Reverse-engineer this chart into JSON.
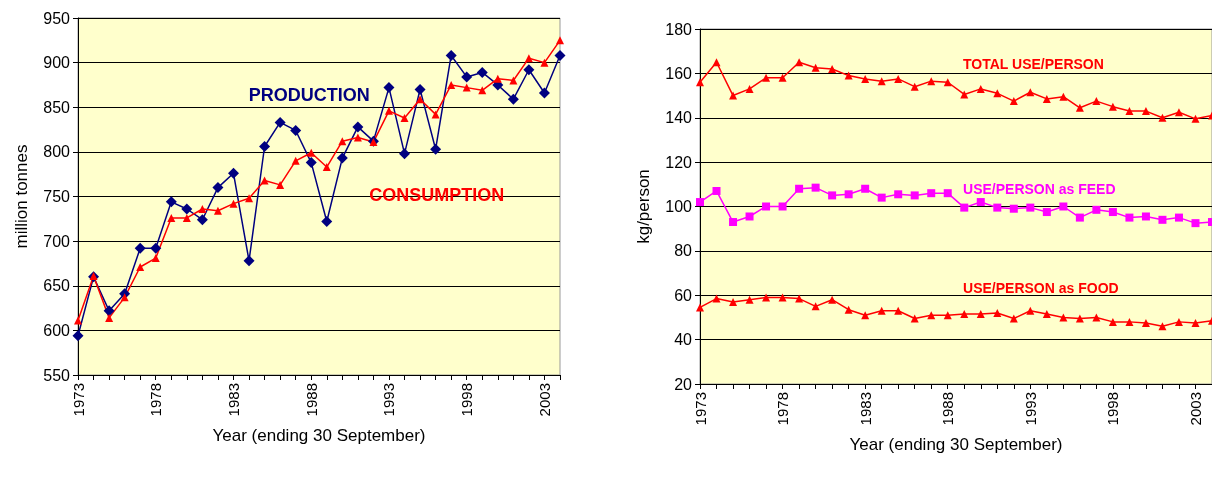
{
  "chart_data": [
    {
      "type": "line",
      "xlabel": "Year (ending 30 September)",
      "ylabel": "million tonnes",
      "categories": [
        "1973",
        null,
        null,
        null,
        null,
        "1978",
        null,
        null,
        null,
        null,
        "1983",
        null,
        null,
        null,
        null,
        "1988",
        null,
        null,
        null,
        null,
        "1993",
        null,
        null,
        null,
        null,
        "1998",
        null,
        null,
        null,
        null,
        "2003",
        null
      ],
      "ylim": [
        550,
        950
      ],
      "yticks": [
        550,
        600,
        650,
        700,
        750,
        800,
        850,
        900,
        950
      ],
      "grid": "y",
      "series": [
        {
          "name": "PRODUCTION",
          "color": "#000080",
          "marker": "diamond",
          "values": [
            594,
            660,
            622,
            641,
            692,
            692,
            744,
            736,
            724,
            760,
            776,
            678,
            806,
            833,
            824,
            788,
            722,
            793,
            828,
            812,
            872,
            798,
            870,
            803,
            908,
            884,
            889,
            875,
            859,
            892,
            866,
            908
          ]
        },
        {
          "name": "CONSUMPTION",
          "color": "#ff0000",
          "marker": "triangle",
          "values": [
            611,
            661,
            614,
            637,
            671,
            681,
            726,
            726,
            736,
            734,
            742,
            748,
            768,
            763,
            790,
            799,
            783,
            812,
            816,
            811,
            846,
            838,
            859,
            842,
            875,
            872,
            869,
            882,
            880,
            905,
            900,
            925
          ]
        }
      ]
    },
    {
      "type": "line",
      "xlabel": "Year (ending 30 September)",
      "ylabel": "kg/person",
      "categories": [
        "1973",
        null,
        null,
        null,
        null,
        "1978",
        null,
        null,
        null,
        null,
        "1983",
        null,
        null,
        null,
        null,
        "1988",
        null,
        null,
        null,
        null,
        "1993",
        null,
        null,
        null,
        null,
        "1998",
        null,
        null,
        null,
        null,
        "2003",
        null
      ],
      "ylim": [
        20,
        180
      ],
      "yticks": [
        20,
        40,
        60,
        80,
        100,
        120,
        140,
        160,
        180
      ],
      "grid": "y",
      "series": [
        {
          "name": "TOTAL USE/PERSON",
          "color": "#ff0000",
          "marker": "triangle",
          "values": [
            156,
            165,
            150,
            153,
            158,
            158,
            165,
            162.5,
            162,
            159,
            157.5,
            156.5,
            157.5,
            154,
            156.5,
            156,
            150.5,
            153,
            151,
            147.5,
            151.5,
            148.5,
            149.5,
            144.5,
            147.5,
            145,
            143,
            143,
            140,
            142.5,
            139.5,
            141
          ]
        },
        {
          "name": "USE/PERSON as FEED",
          "color": "#ff00ff",
          "marker": "square",
          "values": [
            102,
            107,
            93,
            95.5,
            100,
            100,
            108,
            108.5,
            105,
            105.5,
            108,
            104,
            105.5,
            105,
            106,
            106,
            99.5,
            102,
            99.5,
            99,
            99.5,
            97.5,
            100,
            95,
            98.5,
            97.5,
            95,
            95.5,
            94,
            95,
            92.5,
            93
          ]
        },
        {
          "name": "USE/PERSON as FOOD",
          "color": "#ff0000",
          "marker": "triangle",
          "values": [
            54.5,
            58.5,
            57,
            58,
            59,
            59,
            58.5,
            55,
            58,
            53.5,
            51,
            53,
            53,
            49.5,
            51,
            51,
            51.5,
            51.5,
            52,
            49.5,
            53,
            51.5,
            50,
            49.5,
            50,
            48,
            48,
            47.5,
            46,
            48,
            47.5,
            48.5
          ]
        }
      ]
    }
  ]
}
